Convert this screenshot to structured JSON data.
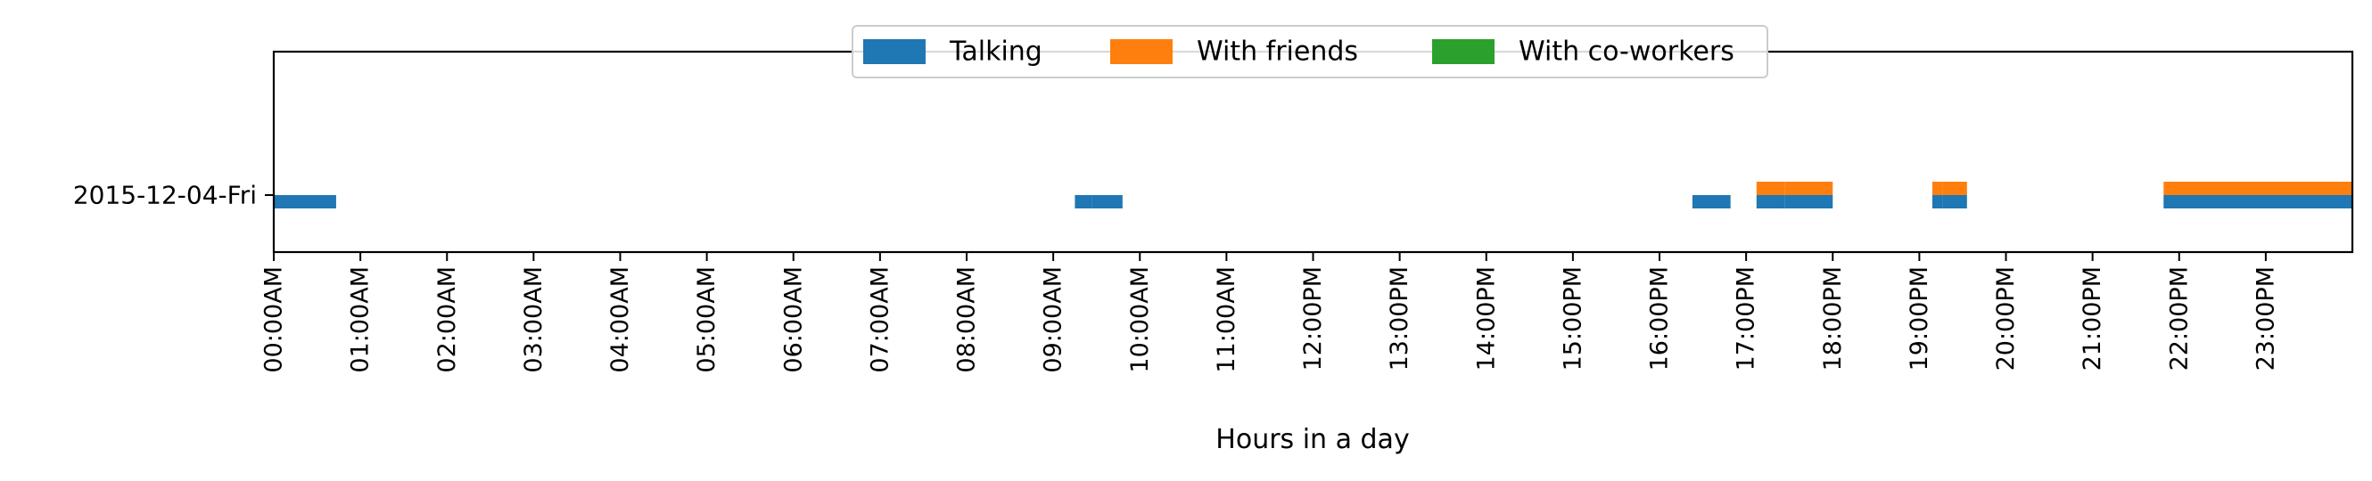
{
  "chart_data": {
    "type": "timeline",
    "xlabel": "Hours in a day",
    "xlim_hours": [
      0,
      24
    ],
    "rows": [
      "2015-12-04-Fri"
    ],
    "x_tick_labels": [
      "00:00AM",
      "01:00AM",
      "02:00AM",
      "03:00AM",
      "04:00AM",
      "05:00AM",
      "06:00AM",
      "07:00AM",
      "08:00AM",
      "09:00AM",
      "10:00AM",
      "11:00AM",
      "12:00PM",
      "13:00PM",
      "14:00PM",
      "15:00PM",
      "16:00PM",
      "17:00PM",
      "18:00PM",
      "19:00PM",
      "20:00PM",
      "21:00PM",
      "22:00PM",
      "23:00PM"
    ],
    "legend_position": "top-center",
    "grid": false,
    "series": [
      {
        "name": "Talking",
        "color": "#1f77b4",
        "intervals": [
          [
            "2015-12-04-Fri",
            0.0,
            0.72
          ],
          [
            "2015-12-04-Fri",
            9.25,
            9.45
          ],
          [
            "2015-12-04-Fri",
            9.45,
            9.8
          ],
          [
            "2015-12-04-Fri",
            16.38,
            16.82
          ],
          [
            "2015-12-04-Fri",
            17.12,
            17.45
          ],
          [
            "2015-12-04-Fri",
            17.45,
            18.0
          ],
          [
            "2015-12-04-Fri",
            19.15,
            19.27
          ],
          [
            "2015-12-04-Fri",
            19.27,
            19.55
          ],
          [
            "2015-12-04-Fri",
            21.82,
            24.0
          ]
        ]
      },
      {
        "name": "With friends",
        "color": "#ff7f0e",
        "intervals": [
          [
            "2015-12-04-Fri",
            17.12,
            17.45
          ],
          [
            "2015-12-04-Fri",
            17.45,
            18.0
          ],
          [
            "2015-12-04-Fri",
            19.15,
            19.27
          ],
          [
            "2015-12-04-Fri",
            19.27,
            19.55
          ],
          [
            "2015-12-04-Fri",
            21.82,
            24.0
          ]
        ]
      },
      {
        "name": "With co-workers",
        "color": "#2ca02c",
        "intervals": []
      }
    ]
  }
}
